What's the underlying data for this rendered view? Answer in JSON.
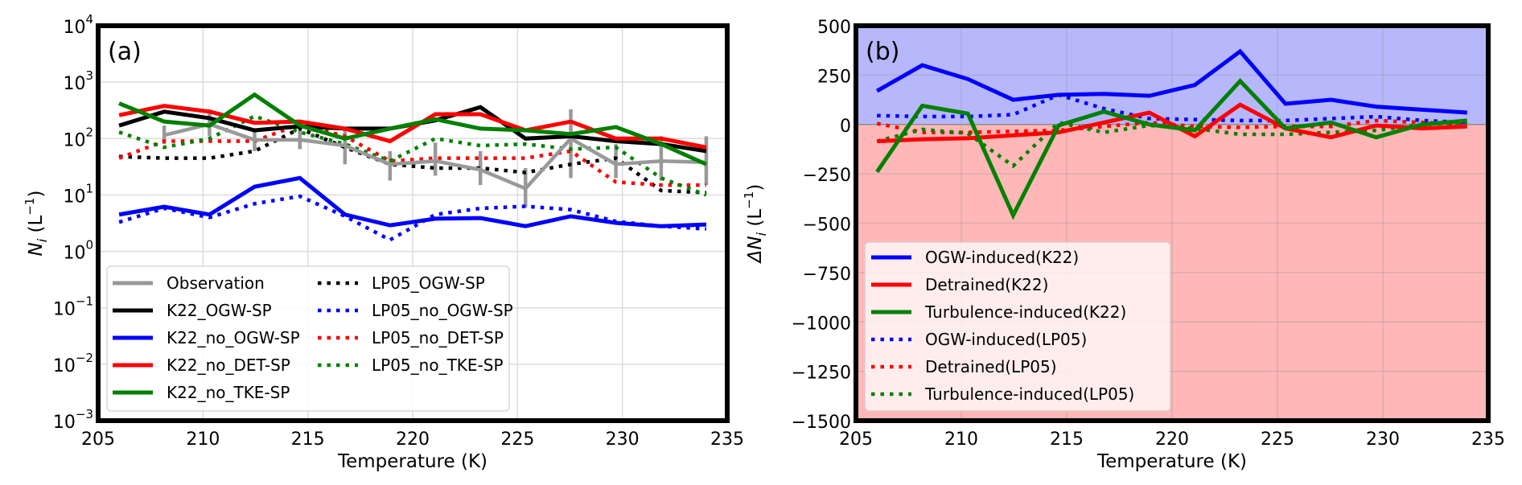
{
  "chart_data": [
    {
      "type": "line",
      "panel_label": "(a)",
      "xlabel": "Temperature (K)",
      "ylabel": {
        "main": "N",
        "sub": "i",
        "unit": " (L",
        "unit_exp": "−1",
        "close": ")"
      },
      "xlim": [
        205,
        235
      ],
      "ylim": [
        0.001,
        10000
      ],
      "yscale": "log",
      "grid": true,
      "legend_placement": "lower-left",
      "xticks": [
        "205",
        "210",
        "215",
        "220",
        "225",
        "230",
        "235"
      ],
      "yticks": [
        {
          "base": "10",
          "exp": "4"
        },
        {
          "base": "10",
          "exp": "3"
        },
        {
          "base": "10",
          "exp": "2"
        },
        {
          "base": "10",
          "exp": "1"
        },
        {
          "base": "10",
          "exp": "0"
        },
        {
          "base": "10",
          "exp": "−1"
        },
        {
          "base": "10",
          "exp": "−2"
        },
        {
          "base": "10",
          "exp": "−3"
        }
      ],
      "x": [
        206,
        208.15,
        210.31,
        212.46,
        214.62,
        216.77,
        218.92,
        221.08,
        223.23,
        225.38,
        227.54,
        229.69,
        231.85,
        234
      ],
      "series": [
        {
          "name": "Observation",
          "color": "#999999",
          "style": "solid",
          "values": [
            null,
            115,
            180,
            95,
            95,
            75,
            35,
            40,
            28,
            13,
            100,
            35,
            40,
            38
          ],
          "err_low": [
            null,
            80,
            110,
            60,
            65,
            35,
            18,
            22,
            15,
            6,
            20,
            20,
            18,
            15
          ],
          "err_high": [
            null,
            170,
            330,
            150,
            160,
            140,
            60,
            85,
            60,
            30,
            330,
            80,
            110,
            110
          ]
        },
        {
          "name": "K22_OGW-SP",
          "color": "#000000",
          "style": "solid",
          "values": [
            170,
            300,
            230,
            140,
            165,
            150,
            150,
            210,
            360,
            100,
            110,
            90,
            80,
            60
          ]
        },
        {
          "name": "K22_no_OGW-SP",
          "color": "#0000ff",
          "style": "solid",
          "values": [
            4.5,
            6.2,
            4.5,
            14,
            20,
            4.5,
            2.9,
            3.8,
            3.9,
            2.8,
            4.2,
            3.2,
            2.8,
            3.0
          ]
        },
        {
          "name": "K22_no_DET-SP",
          "color": "#ff0000",
          "style": "solid",
          "values": [
            260,
            380,
            300,
            190,
            200,
            150,
            90,
            270,
            270,
            140,
            200,
            100,
            100,
            70
          ]
        },
        {
          "name": "K22_no_TKE-SP",
          "color": "#008000",
          "style": "solid",
          "values": [
            420,
            200,
            170,
            600,
            170,
            100,
            150,
            220,
            150,
            140,
            120,
            160,
            80,
            35
          ]
        },
        {
          "name": "LP05_OGW-SP",
          "color": "#000000",
          "style": "dotted",
          "values": [
            48,
            45,
            45,
            60,
            150,
            70,
            35,
            30,
            30,
            25,
            35,
            45,
            12,
            11
          ]
        },
        {
          "name": "LP05_no_OGW-SP",
          "color": "#0000ff",
          "style": "dotted",
          "values": [
            3.3,
            5.8,
            4.0,
            7,
            9.5,
            4.2,
            1.6,
            4.5,
            5.8,
            6.3,
            5.5,
            3.4,
            2.8,
            2.5
          ]
        },
        {
          "name": "LP05_no_DET-SP",
          "color": "#ff0000",
          "style": "dotted",
          "values": [
            45,
            90,
            90,
            90,
            180,
            110,
            40,
            45,
            45,
            45,
            60,
            17,
            15,
            15
          ]
        },
        {
          "name": "LP05_no_TKE-SP",
          "color": "#008000",
          "style": "dotted",
          "values": [
            130,
            70,
            100,
            250,
            130,
            80,
            40,
            100,
            75,
            80,
            65,
            70,
            20,
            10
          ]
        }
      ]
    },
    {
      "type": "line",
      "panel_label": "(b)",
      "xlabel": "Temperature (K)",
      "ylabel": {
        "main": "ΔN",
        "sub": "i",
        "unit": " (L",
        "unit_exp": "−1",
        "close": ")"
      },
      "xlim": [
        205,
        235
      ],
      "ylim": [
        -1500,
        500
      ],
      "grid": true,
      "legend_placement": "lower-left",
      "background": {
        "positive_color": "#b7b7fc",
        "negative_color": "#ffb7b7"
      },
      "xticks": [
        "205",
        "210",
        "215",
        "220",
        "225",
        "230",
        "235"
      ],
      "yticks": [
        "500",
        "250",
        "0",
        "−250",
        "−500",
        "−750",
        "−1000",
        "−1250",
        "−1500"
      ],
      "ytick_values": [
        500,
        250,
        0,
        -250,
        -500,
        -750,
        -1000,
        -1250,
        -1500
      ],
      "x": [
        206,
        208.15,
        210.31,
        212.46,
        214.62,
        216.77,
        218.92,
        221.08,
        223.23,
        225.38,
        227.54,
        229.69,
        231.85,
        234
      ],
      "series": [
        {
          "name": "OGW-induced(K22)",
          "color": "#0000ff",
          "style": "solid",
          "values": [
            170,
            300,
            230,
            125,
            150,
            155,
            145,
            200,
            370,
            105,
            125,
            90,
            75,
            60
          ]
        },
        {
          "name": "Detrained(K22)",
          "color": "#ff0000",
          "style": "solid",
          "values": [
            -85,
            -75,
            -70,
            -55,
            -40,
            10,
            60,
            -60,
            100,
            -20,
            -65,
            -5,
            -20,
            -10
          ]
        },
        {
          "name": "Turbulence-induced(K22)",
          "color": "#008000",
          "style": "solid",
          "values": [
            -240,
            95,
            55,
            -460,
            -5,
            65,
            0,
            -30,
            220,
            -20,
            10,
            -65,
            0,
            20
          ]
        },
        {
          "name": "OGW-induced(LP05)",
          "color": "#0000ff",
          "style": "dotted",
          "values": [
            45,
            40,
            40,
            50,
            150,
            80,
            30,
            25,
            20,
            20,
            30,
            40,
            20,
            10
          ]
        },
        {
          "name": "Detrained(LP05)",
          "color": "#ff0000",
          "style": "dotted",
          "values": [
            5,
            -40,
            -40,
            -35,
            -30,
            -10,
            10,
            -10,
            -15,
            -10,
            -10,
            20,
            10,
            0
          ]
        },
        {
          "name": "Turbulence-induced(LP05)",
          "color": "#008000",
          "style": "dotted",
          "values": [
            -85,
            -25,
            -45,
            -210,
            10,
            -40,
            -5,
            -20,
            -50,
            -50,
            -40,
            -30,
            0,
            10
          ]
        }
      ]
    }
  ]
}
